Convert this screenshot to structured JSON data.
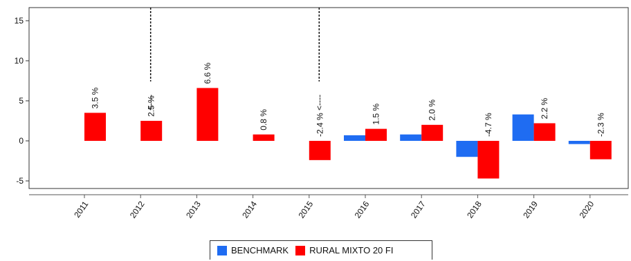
{
  "chart_data": {
    "type": "bar",
    "categories": [
      "2011",
      "2012",
      "2013",
      "2014",
      "2015",
      "2016",
      "2017",
      "2018",
      "2019",
      "2020"
    ],
    "series": [
      {
        "name": "BENCHMARK",
        "color": "#1f6cf2",
        "values": [
          0,
          0,
          0,
          0,
          0,
          0.7,
          0.8,
          -2.0,
          3.3,
          -0.4
        ]
      },
      {
        "name": "RURAL MIXTO 20 FI",
        "color": "#ff0000",
        "values": [
          3.5,
          2.5,
          6.6,
          0.8,
          -2.4,
          1.5,
          2.0,
          -4.7,
          2.2,
          -2.3
        ]
      }
    ],
    "data_labels": [
      "3.5 %",
      "2.5 %",
      "6.6 %",
      "0.8 %",
      "-2.4 %",
      "1.5 %",
      "2.0 %",
      "-4.7 %",
      "2.2 %",
      "-2.3 %"
    ],
    "marker_lines": [
      {
        "category": "2012",
        "label": "<----"
      },
      {
        "category": "2015",
        "label": "<----"
      }
    ],
    "y_ticks": [
      15,
      10,
      5,
      0,
      -5
    ],
    "ylim": [
      -6,
      16.5
    ],
    "grid": false,
    "legend_position": "bottom"
  }
}
